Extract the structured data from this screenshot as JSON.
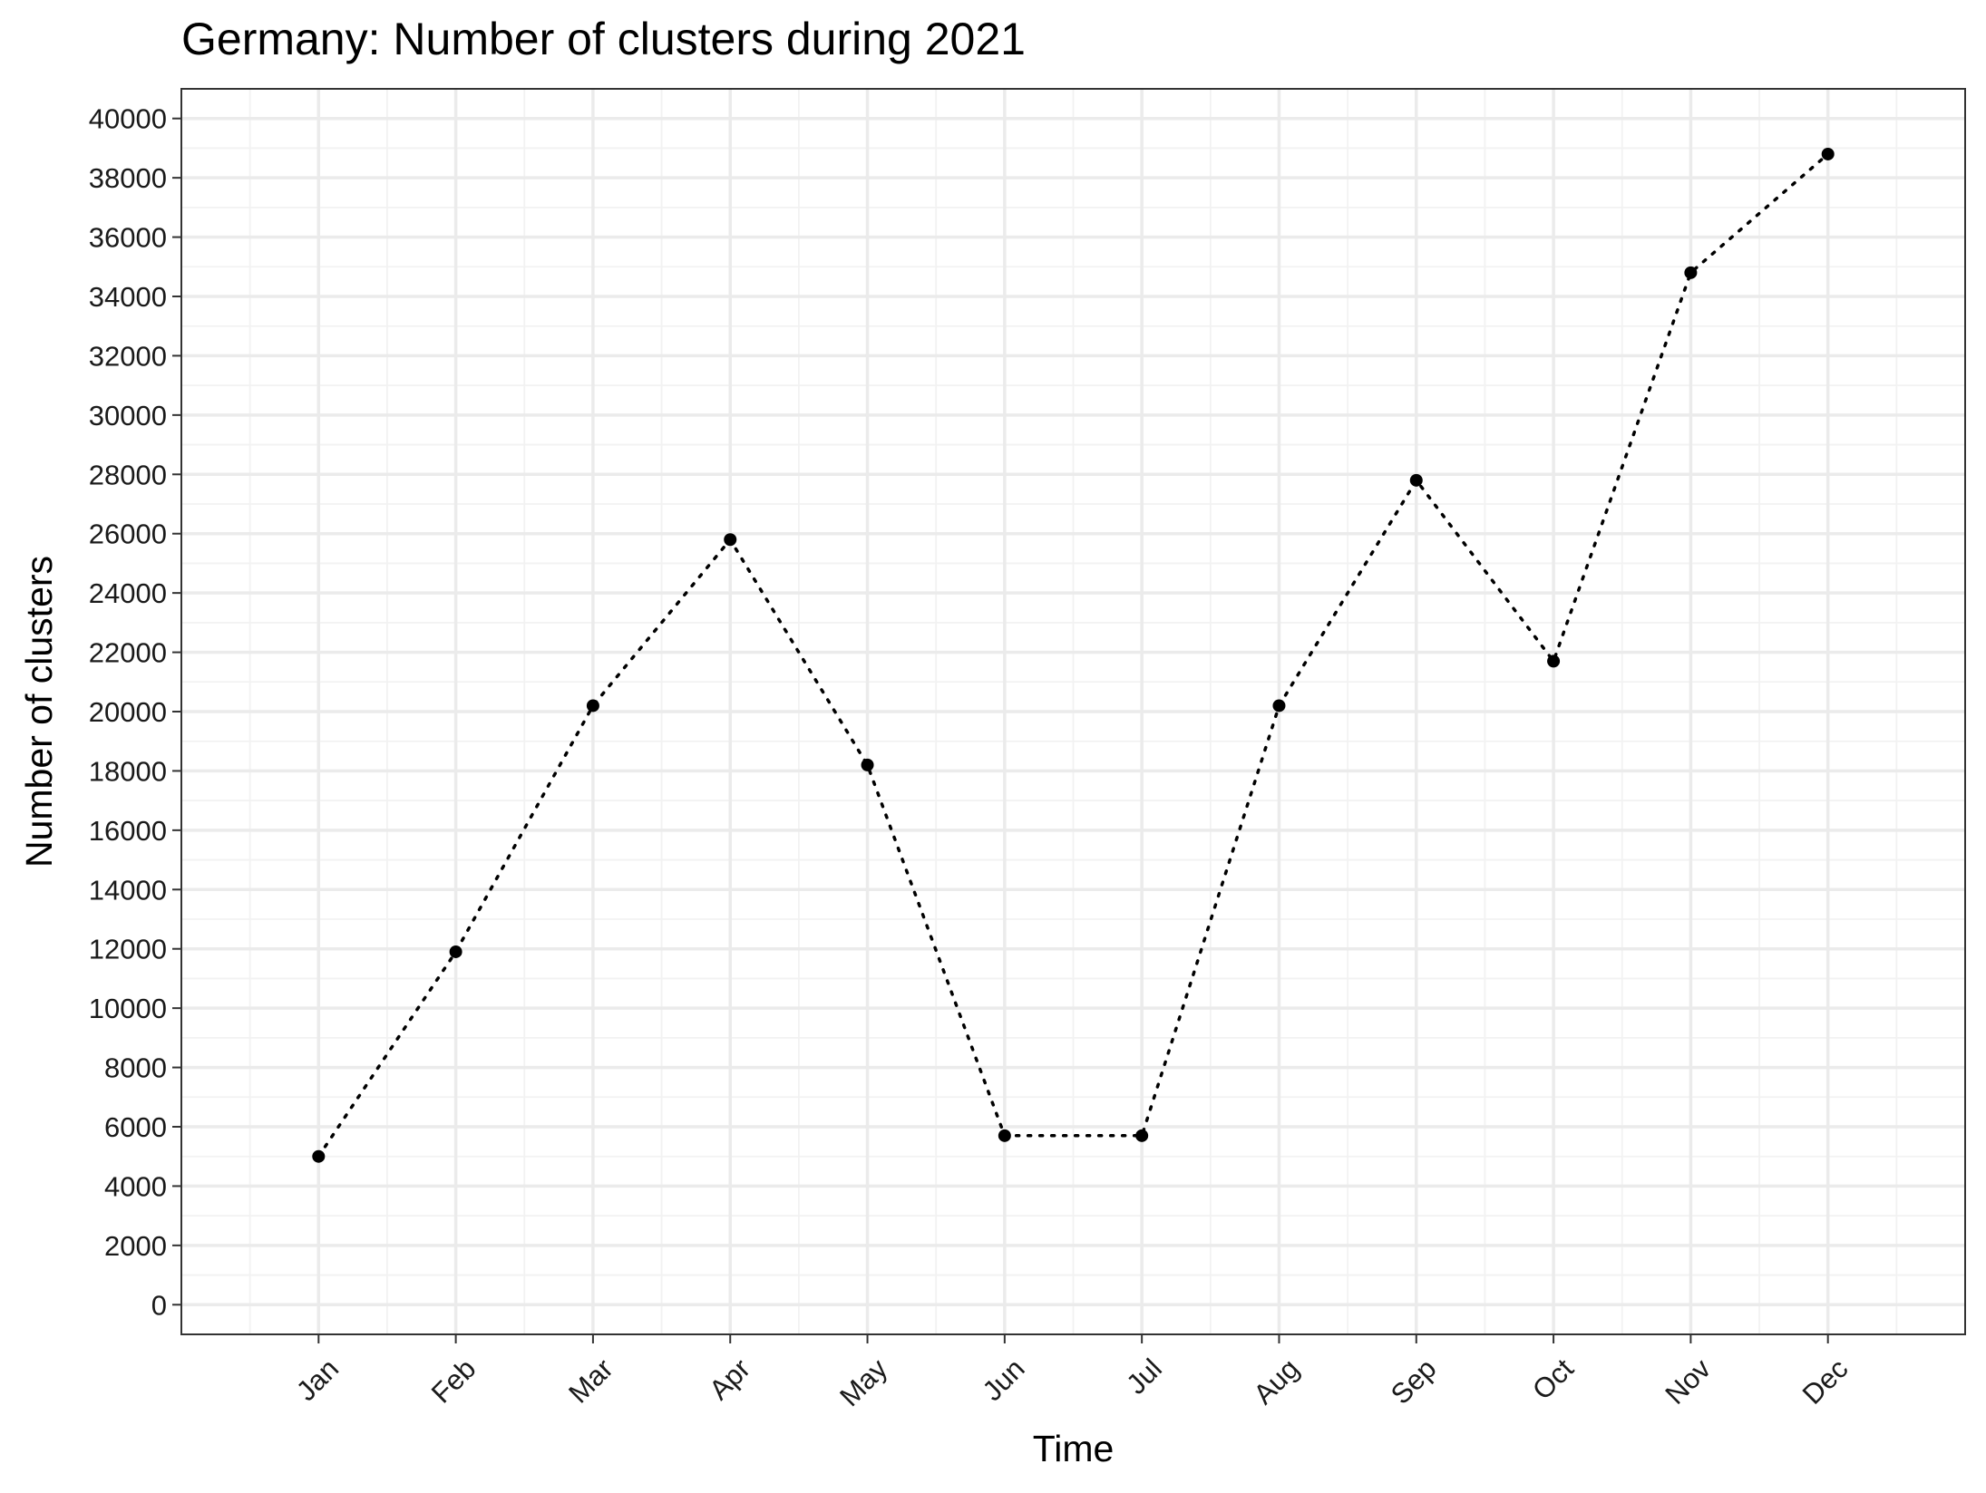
{
  "chart_data": {
    "type": "line",
    "title": "Germany: Number of clusters during 2021",
    "xlabel": "Time",
    "ylabel": "Number of clusters",
    "categories": [
      "Jan",
      "Feb",
      "Mar",
      "Apr",
      "May",
      "Jun",
      "Jul",
      "Aug",
      "Sep",
      "Oct",
      "Nov",
      "Dec"
    ],
    "values": [
      5000,
      11900,
      20200,
      25800,
      18200,
      5700,
      5700,
      20200,
      27800,
      21700,
      34800,
      38800
    ],
    "ylim": [
      -1000,
      41000
    ],
    "yticks": [
      0,
      2000,
      4000,
      6000,
      8000,
      10000,
      12000,
      14000,
      16000,
      18000,
      20000,
      22000,
      24000,
      26000,
      28000,
      30000,
      32000,
      34000,
      36000,
      38000,
      40000
    ],
    "ytick_labels": [
      "0",
      "2000",
      "4000",
      "6000",
      "8000",
      "10000",
      "12000",
      "14000",
      "16000",
      "18000",
      "20000",
      "22000",
      "24000",
      "26000",
      "28000",
      "30000",
      "32000",
      "34000",
      "36000",
      "38000",
      "40000"
    ],
    "grid": true,
    "line_style": "dotted",
    "marker": "point",
    "theme": "bw",
    "x_tick_rotation_deg": 45,
    "colors": {
      "series": "#000000",
      "grid_major": "#ebebeb",
      "grid_minor": "#f2f2f2",
      "panel_border": "#333333",
      "background": "#ffffff"
    }
  }
}
